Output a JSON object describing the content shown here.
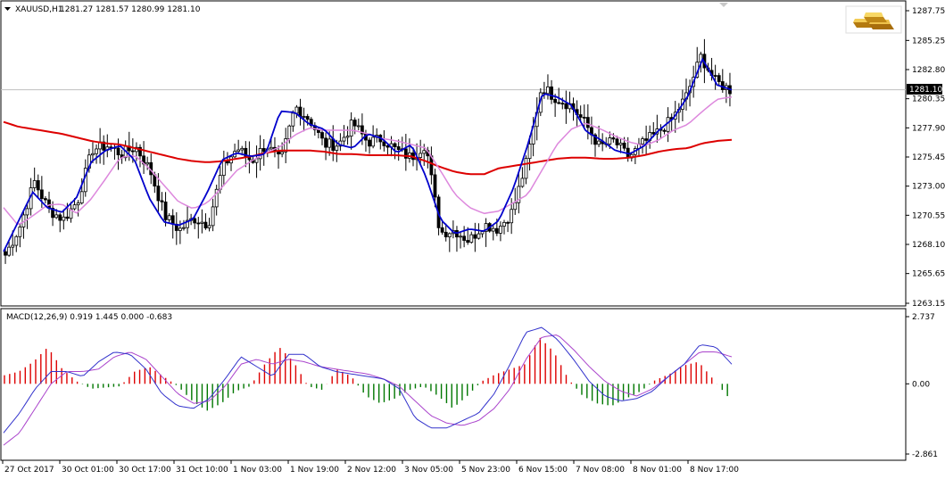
{
  "header": {
    "symbol": "XAUUSD,H1",
    "ohlc": "1281.27 1281.57 1280.99 1281.10"
  },
  "indicator": {
    "label": "MACD(12,26,9) 0.919 1.445 0.000 -0.683"
  },
  "current_price": "1281.10",
  "colors": {
    "candle": "#000000",
    "ma_fast": "#0000cc",
    "ma_mid": "#dd88dd",
    "ma_slow": "#dd0000",
    "macd_up": "#dd0000",
    "macd_down": "#007700",
    "macd_line": "#3333cc",
    "signal_line": "#aa44cc",
    "grid": "#c0c0c0",
    "logo_gold": "#d8a020"
  },
  "logo_icon": "gold-bars-icon",
  "chart_data": [
    {
      "type": "candlestick",
      "title": "XAUUSD,H1",
      "ylim": [
        1263.15,
        1287.75
      ],
      "y_ticks": [
        "1287.75",
        "1285.25",
        "1282.80",
        "1280.35",
        "1277.90",
        "1275.45",
        "1273.00",
        "1270.55",
        "1268.10",
        "1265.65",
        "1263.15"
      ],
      "x_ticks": [
        "27 Oct 2017",
        "30 Oct 01:00",
        "30 Oct 17:00",
        "31 Oct 10:00",
        "1 Nov 03:00",
        "1 Nov 19:00",
        "2 Nov 12:00",
        "3 Nov 05:00",
        "5 Nov 23:00",
        "6 Nov 15:00",
        "7 Nov 08:00",
        "8 Nov 01:00",
        "8 Nov 17:00"
      ],
      "close_anchors": [
        1267.2,
        1269.6,
        1273.4,
        1271.0,
        1270.2,
        1271.8,
        1276.1,
        1276.4,
        1275.7,
        1276.3,
        1274.3,
        1270.5,
        1269.3,
        1270.3,
        1269.8,
        1274.6,
        1276.2,
        1275.1,
        1276.5,
        1275.0,
        1279.7,
        1278.6,
        1276.5,
        1276.5,
        1278.3,
        1276.7,
        1277.0,
        1276.0,
        1275.4,
        1276.6,
        1269.1,
        1269.3,
        1268.4,
        1269.8,
        1269.4,
        1270.9,
        1275.2,
        1281.4,
        1280.4,
        1279.8,
        1278.3,
        1276.3,
        1276.8,
        1275.4,
        1276.6,
        1277.5,
        1278.6,
        1280.6,
        1283.9,
        1281.8,
        1281.1
      ],
      "ma_fast_anchors": [
        1267.5,
        1270.0,
        1272.5,
        1271.2,
        1270.8,
        1272.0,
        1275.0,
        1276.0,
        1276.4,
        1275.2,
        1272.0,
        1270.0,
        1269.7,
        1270.2,
        1272.5,
        1275.2,
        1275.8,
        1275.5,
        1275.7,
        1279.3,
        1279.2,
        1278.2,
        1277.8,
        1276.5,
        1276.2,
        1277.4,
        1277.0,
        1275.8,
        1276.5,
        1273.8,
        1270.2,
        1269.0,
        1269.4,
        1269.2,
        1270.1,
        1272.8,
        1276.5,
        1280.8,
        1280.5,
        1279.8,
        1277.6,
        1276.9,
        1276.0,
        1275.7,
        1276.4,
        1277.7,
        1278.7,
        1280.6,
        1283.7,
        1281.5,
        1281.1
      ],
      "ma_mid_anchors": [
        1271.2,
        1269.7,
        1270.5,
        1271.4,
        1271.5,
        1270.7,
        1271.9,
        1273.6,
        1275.4,
        1275.6,
        1274.5,
        1273.1,
        1271.7,
        1271.1,
        1271.6,
        1272.9,
        1274.3,
        1275.1,
        1275.8,
        1276.3,
        1277.3,
        1277.9,
        1277.7,
        1277.7,
        1277.7,
        1277.4,
        1277.0,
        1276.8,
        1276.5,
        1276.2,
        1274.3,
        1272.3,
        1271.2,
        1270.7,
        1270.9,
        1271.6,
        1272.3,
        1274.4,
        1276.5,
        1277.8,
        1278.3,
        1277.8,
        1277.2,
        1276.7,
        1276.4,
        1276.9,
        1277.7,
        1278.2,
        1279.3,
        1280.3,
        1280.5
      ],
      "ma_slow_anchors": [
        1278.4,
        1278.0,
        1277.8,
        1277.6,
        1277.4,
        1277.1,
        1276.8,
        1276.6,
        1276.5,
        1276.2,
        1275.9,
        1275.6,
        1275.3,
        1275.1,
        1275.0,
        1275.1,
        1275.3,
        1275.5,
        1275.8,
        1276.0,
        1276.0,
        1276.0,
        1275.9,
        1275.7,
        1275.7,
        1275.6,
        1275.6,
        1275.6,
        1275.5,
        1275.1,
        1274.6,
        1274.2,
        1274.0,
        1274.0,
        1274.5,
        1274.7,
        1274.9,
        1275.1,
        1275.3,
        1275.4,
        1275.4,
        1275.3,
        1275.3,
        1275.4,
        1275.6,
        1275.9,
        1276.1,
        1276.2,
        1276.6,
        1276.8,
        1276.9
      ]
    },
    {
      "type": "bar",
      "title": "MACD(12,26,9) 0.919 1.445 0.000 -0.683",
      "ylim": [
        -2.861,
        2.737
      ],
      "y_ticks": [
        "2.737",
        "0.00",
        "-2.861"
      ],
      "histogram_anchors": [
        0.35,
        0.5,
        0.9,
        1.5,
        0.6,
        0.1,
        -0.2,
        -0.15,
        -0.1,
        0.5,
        0.7,
        0.3,
        -0.1,
        -0.7,
        -1.1,
        -0.8,
        -0.3,
        -0.1,
        0.8,
        1.5,
        0.9,
        -0.1,
        -0.25,
        0.6,
        0.3,
        -0.5,
        -0.8,
        -0.6,
        -0.25,
        -0.1,
        -0.5,
        -1.0,
        -0.5,
        0.1,
        0.4,
        0.6,
        0.8,
        1.9,
        1.3,
        0.2,
        -0.5,
        -0.8,
        -0.9,
        -0.6,
        -0.3,
        0.15,
        0.4,
        0.75,
        0.9,
        0.2,
        -0.5
      ],
      "macd_anchors": [
        -2.0,
        -1.2,
        -0.2,
        0.5,
        0.5,
        0.3,
        0.9,
        1.3,
        1.2,
        0.6,
        -0.4,
        -0.9,
        -1.0,
        -0.6,
        0.2,
        1.1,
        0.7,
        0.3,
        1.2,
        1.2,
        0.7,
        0.5,
        0.4,
        0.3,
        0.2,
        -0.2,
        -1.4,
        -1.8,
        -1.8,
        -1.5,
        -1.2,
        -0.4,
        0.8,
        2.1,
        2.3,
        1.8,
        1.0,
        0.1,
        -0.5,
        -0.7,
        -0.6,
        -0.3,
        0.3,
        0.8,
        1.6,
        1.5,
        0.8
      ],
      "signal_anchors": [
        -2.5,
        -2.0,
        -1.0,
        0.0,
        0.5,
        0.5,
        0.6,
        1.1,
        1.3,
        1.0,
        0.3,
        -0.4,
        -0.8,
        -0.7,
        -0.1,
        0.8,
        1.0,
        0.8,
        1.0,
        0.9,
        0.7,
        0.6,
        0.5,
        0.4,
        0.2,
        -0.1,
        -0.7,
        -1.3,
        -1.6,
        -1.7,
        -1.5,
        -1.0,
        -0.2,
        1.0,
        1.9,
        2.0,
        1.4,
        0.7,
        0.1,
        -0.3,
        -0.5,
        -0.2,
        0.3,
        0.8,
        1.3,
        1.3,
        1.1
      ]
    }
  ]
}
